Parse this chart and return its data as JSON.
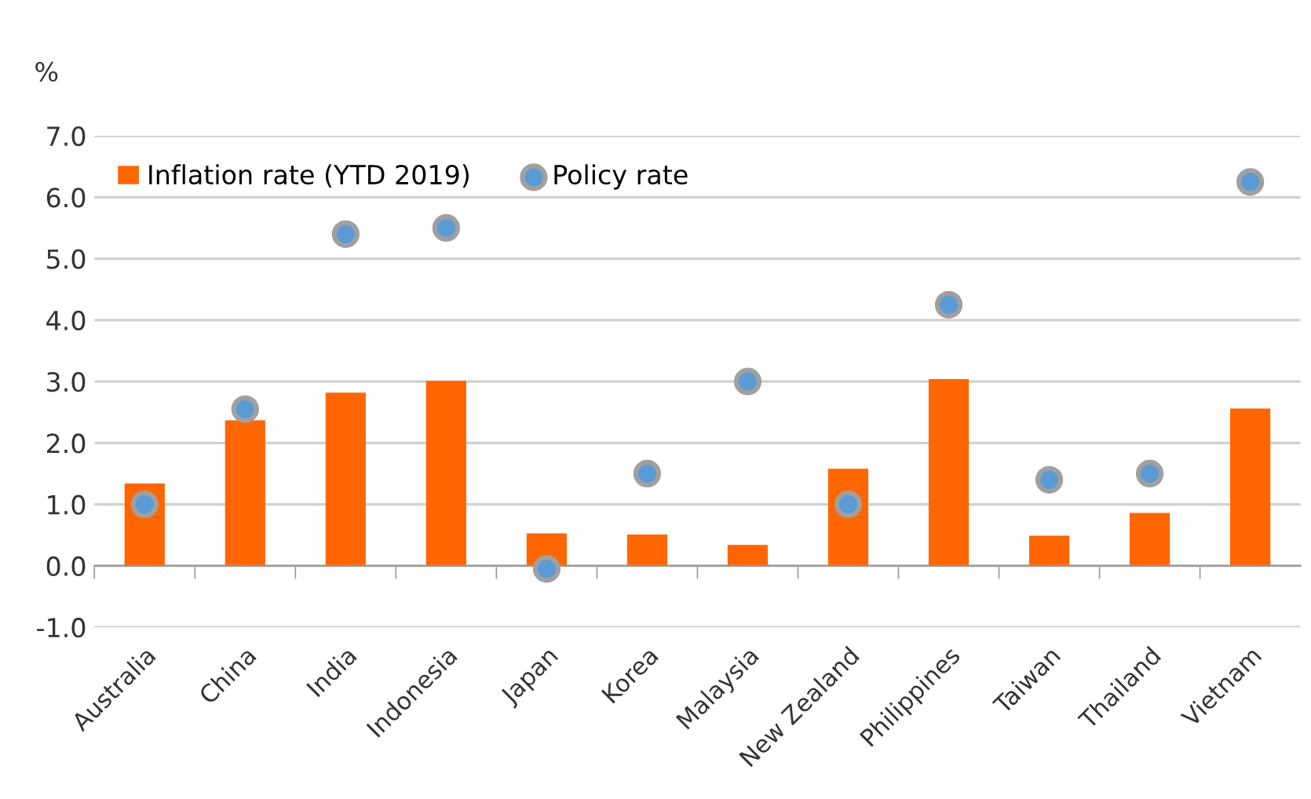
{
  "chart_data": {
    "type": "bar",
    "ylabel": "%",
    "categories": [
      "Australia",
      "China",
      "India",
      "Indonesia",
      "Japan",
      "Korea",
      "Malaysia",
      "New Zealand",
      "Philippines",
      "Taiwan",
      "Thailand",
      "Vietnam"
    ],
    "series": [
      {
        "name": "Inflation rate (YTD 2019)",
        "color": "#ff6600",
        "values": [
          1.34,
          2.37,
          2.82,
          3.01,
          0.53,
          0.51,
          0.34,
          1.58,
          3.04,
          0.49,
          0.86,
          2.56
        ]
      },
      {
        "name": "Policy rate",
        "type": "scatter",
        "color": "#5b9bd5",
        "values": [
          1.0,
          2.55,
          5.4,
          5.5,
          -0.05,
          1.5,
          3.0,
          1.0,
          4.25,
          1.4,
          1.5,
          6.25
        ]
      }
    ],
    "ylim": [
      -1.0,
      7.0
    ],
    "yticks": [
      {
        "value": -1,
        "label": "-1.0"
      },
      {
        "value": 0,
        "label": "0.0"
      },
      {
        "value": 1,
        "label": "1.0"
      },
      {
        "value": 2,
        "label": "2.0"
      },
      {
        "value": 3,
        "label": "3.0"
      },
      {
        "value": 4,
        "label": "4.0"
      },
      {
        "value": 5,
        "label": "5.0"
      },
      {
        "value": 6,
        "label": "6.0"
      },
      {
        "value": 7,
        "label": "7.0"
      }
    ],
    "grid": "y",
    "legend": "top left",
    "marker": "circle"
  }
}
